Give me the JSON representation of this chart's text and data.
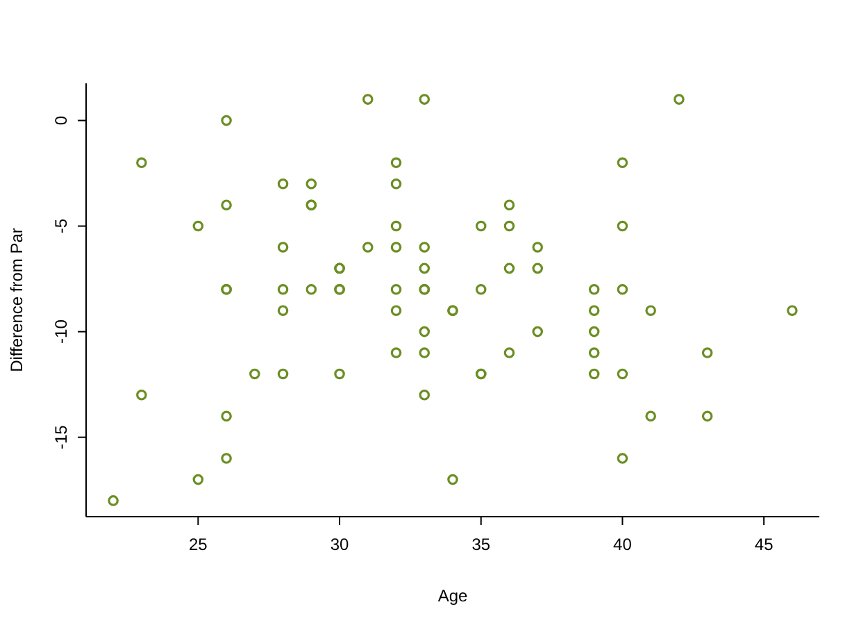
{
  "chart_data": {
    "type": "scatter",
    "xlabel": "Age",
    "ylabel": "Difference from Par",
    "marker": "circle",
    "grid": false,
    "xlim": [
      21.04,
      46.96
    ],
    "ylim": [
      -18.76,
      1.76
    ],
    "xticks": [
      25,
      30,
      35,
      40,
      45
    ],
    "yticks": [
      0,
      -5,
      -10,
      -15
    ],
    "series": [
      {
        "color": "#6b8e23",
        "x": [
          22,
          23,
          23,
          25,
          25,
          26,
          26,
          26,
          26,
          26,
          26,
          27,
          28,
          28,
          28,
          28,
          28,
          29,
          29,
          29,
          29,
          30,
          30,
          30,
          30,
          30,
          31,
          31,
          32,
          32,
          32,
          32,
          32,
          32,
          32,
          33,
          33,
          33,
          33,
          33,
          33,
          33,
          33,
          34,
          34,
          34,
          35,
          35,
          35,
          35,
          36,
          36,
          36,
          36,
          37,
          37,
          37,
          39,
          39,
          39,
          39,
          39,
          40,
          40,
          40,
          40,
          40,
          41,
          41,
          42,
          43,
          43,
          46
        ],
        "values": [
          -18,
          -2,
          -13,
          -5,
          -17,
          0,
          -4,
          -8,
          -8,
          -14,
          -16,
          -12,
          -3,
          -6,
          -8,
          -9,
          -12,
          -3,
          -4,
          -4,
          -8,
          -7,
          -7,
          -8,
          -8,
          -12,
          1,
          -6,
          -2,
          -3,
          -5,
          -6,
          -8,
          -9,
          -11,
          1,
          -6,
          -7,
          -8,
          -8,
          -10,
          -11,
          -13,
          -9,
          -9,
          -17,
          -5,
          -8,
          -12,
          -12,
          -4,
          -5,
          -7,
          -11,
          -6,
          -7,
          -10,
          -8,
          -9,
          -10,
          -11,
          -12,
          -2,
          -5,
          -8,
          -12,
          -16,
          -9,
          -14,
          1,
          -11,
          -14,
          -9
        ]
      }
    ]
  }
}
